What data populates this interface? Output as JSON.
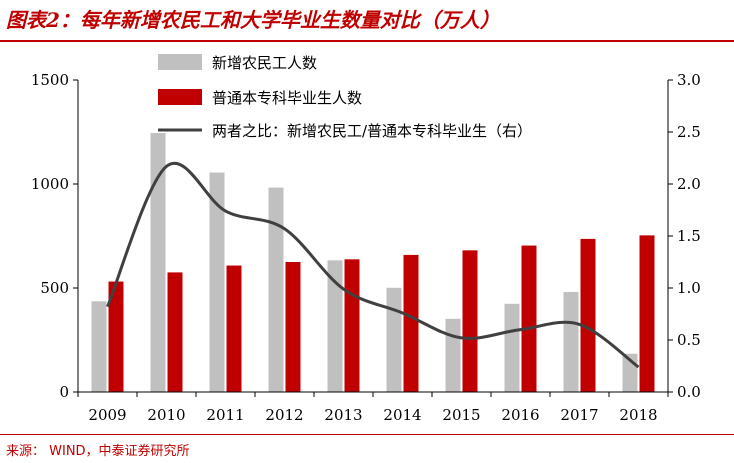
{
  "header": {
    "title": "图表2：每年新增农民工和大学毕业生数量对比（万人）"
  },
  "footer": {
    "source": "来源： WIND，中泰证券研究所"
  },
  "chart_data": {
    "type": "bar",
    "categories": [
      "2009",
      "2010",
      "2011",
      "2012",
      "2013",
      "2014",
      "2015",
      "2016",
      "2017",
      "2018"
    ],
    "series": [
      {
        "name": "新增农民工人数",
        "type": "bar",
        "axis": "left",
        "color": "#c0c0c0",
        "values": [
          436,
          1245,
          1055,
          983,
          633,
          501,
          352,
          424,
          481,
          184
        ]
      },
      {
        "name": "普通本专科毕业生人数",
        "type": "bar",
        "axis": "left",
        "color": "#c00000",
        "values": [
          531,
          575,
          608,
          625,
          638,
          659,
          681,
          704,
          736,
          753
        ]
      },
      {
        "name": "两者之比：新增农民工/普通本专科毕业生（右）",
        "type": "line",
        "axis": "right",
        "color": "#404040",
        "values": [
          0.82,
          2.17,
          1.74,
          1.57,
          0.99,
          0.76,
          0.52,
          0.6,
          0.65,
          0.24
        ]
      }
    ],
    "y_left": {
      "ylim": [
        0,
        1500
      ],
      "ticks": [
        "0",
        "500",
        "1000",
        "1500"
      ]
    },
    "y_right": {
      "ylim": [
        0,
        3.0
      ],
      "ticks": [
        "0.0",
        "0.5",
        "1.0",
        "1.5",
        "2.0",
        "2.5",
        "3.0"
      ]
    },
    "grid": false,
    "legend": {
      "position": "top-left"
    }
  }
}
